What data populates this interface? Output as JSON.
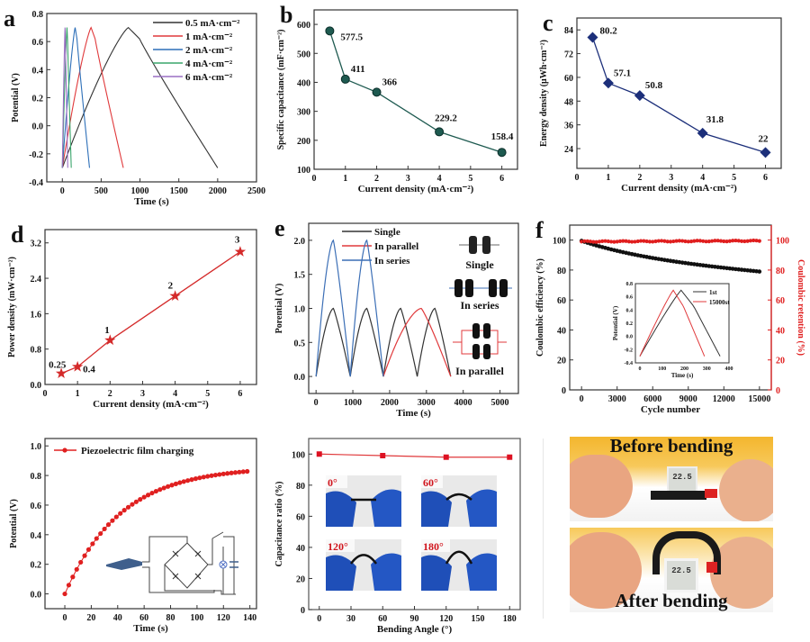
{
  "figure": {
    "panel_labels": [
      "a",
      "b",
      "c",
      "d",
      "e",
      "f"
    ]
  },
  "chart_data": [
    {
      "id": "a",
      "type": "line",
      "title": "",
      "xlabel": "Time (s)",
      "ylabel": "Potential (V)",
      "xlim": [
        -200,
        2500
      ],
      "ylim": [
        -0.4,
        0.8
      ],
      "xticks": [
        0,
        500,
        1000,
        1500,
        2000,
        2500
      ],
      "yticks": [
        -0.4,
        -0.2,
        0.0,
        0.2,
        0.4,
        0.6,
        0.8
      ],
      "legend": "top-right",
      "series": [
        {
          "name": "0.5 mA·cm⁻²",
          "color": "#333333",
          "charge_end": 850,
          "discharge_end": 2000
        },
        {
          "name": "1 mA·cm⁻²",
          "color": "#e0393b",
          "charge_end": 370,
          "discharge_end": 785
        },
        {
          "name": "2 mA·cm⁻²",
          "color": "#2d6fb8",
          "charge_end": 165,
          "discharge_end": 350
        },
        {
          "name": "4 mA·cm⁻²",
          "color": "#3aa56b",
          "charge_end": 60,
          "discharge_end": 115
        },
        {
          "name": "6 mA·cm⁻²",
          "color": "#9a6fc3",
          "charge_end": 35,
          "discharge_end": 70
        }
      ],
      "v_min": -0.3,
      "v_max": 0.7
    },
    {
      "id": "b",
      "type": "line",
      "xlabel": "Current density (mA·cm⁻²)",
      "ylabel": "Specific capacitance (mF·cm⁻²)",
      "xlim": [
        0,
        6.5
      ],
      "ylim": [
        100,
        650
      ],
      "xticks": [
        0,
        1,
        2,
        3,
        4,
        5,
        6
      ],
      "yticks": [
        100,
        200,
        300,
        400,
        500,
        600
      ],
      "color": "#1e5a50",
      "x": [
        0.5,
        1,
        2,
        4,
        6
      ],
      "values": [
        577.5,
        411,
        366,
        229.2,
        158.4
      ],
      "labels": [
        "577.5",
        "411",
        "366",
        "229.2",
        "158.4"
      ]
    },
    {
      "id": "c",
      "type": "line",
      "xlabel": "Current density (mA·cm⁻²)",
      "ylabel": "Energy density (μWh·cm⁻²)",
      "xlim": [
        0,
        6.5
      ],
      "ylim": [
        14,
        90
      ],
      "xticks": [
        0,
        1,
        2,
        3,
        4,
        5,
        6
      ],
      "yticks": [
        24,
        36,
        48,
        60,
        72,
        84
      ],
      "color": "#1c2f7a",
      "x": [
        0.5,
        1,
        2,
        4,
        6
      ],
      "values": [
        80.2,
        57.1,
        50.8,
        31.8,
        22
      ],
      "labels": [
        "80.2",
        "57.1",
        "50.8",
        "31.8",
        "22"
      ]
    },
    {
      "id": "d",
      "type": "line",
      "xlabel": "Current density (mA·cm⁻²)",
      "ylabel": "Power density (mW·cm⁻²)",
      "xlim": [
        0,
        6.5
      ],
      "ylim": [
        0,
        3.5
      ],
      "xticks": [
        0,
        1,
        2,
        3,
        4,
        5,
        6
      ],
      "yticks": [
        0.0,
        0.8,
        1.6,
        2.4,
        3.2
      ],
      "color": "#d42a2a",
      "x": [
        0.5,
        1,
        2,
        4,
        6
      ],
      "values": [
        0.25,
        0.4,
        1,
        2,
        3
      ],
      "labels": [
        "0.25",
        "0.4",
        "1",
        "2",
        "3"
      ]
    },
    {
      "id": "e",
      "type": "line",
      "xlabel": "Time (s)",
      "ylabel": "Porential (V)",
      "xlim": [
        -200,
        5500
      ],
      "ylim": [
        -0.25,
        2.25
      ],
      "xticks": [
        0,
        1000,
        2000,
        3000,
        4000,
        5000
      ],
      "yticks": [
        0.0,
        0.5,
        1.0,
        1.5,
        2.0
      ],
      "legend": "top-center",
      "series": [
        {
          "name": "Single",
          "color": "#333333",
          "cycles": [
            [
              0,
              470,
              930
            ],
            [
              930,
              1380,
              1830
            ],
            [
              1830,
              2300,
              2750
            ],
            [
              2750,
              3230,
              3660
            ]
          ],
          "peak": 1.0
        },
        {
          "name": "In parallel",
          "color": "#e0393b",
          "cycles": [
            [
              1830,
              2860,
              3660
            ]
          ],
          "peak": 1.0
        },
        {
          "name": "In series",
          "color": "#3c6fb6",
          "cycles": [
            [
              0,
              470,
              930
            ],
            [
              930,
              1380,
              1830
            ]
          ],
          "peak": 2.0
        }
      ],
      "insets": [
        "Single",
        "In series",
        "In parallel"
      ]
    },
    {
      "id": "f",
      "type": "scatter",
      "xlabel": "Cycle number",
      "ylabel": "Coulombic efficiency (%)",
      "ylabel_right": "Coulombic retention (%)",
      "xlim": [
        -1000,
        16000
      ],
      "ylim": [
        0,
        110
      ],
      "xticks": [
        0,
        3000,
        6000,
        9000,
        12000,
        15000
      ],
      "yticks": [
        0,
        20,
        40,
        60,
        80,
        100
      ],
      "series": [
        {
          "name": "Coulombic efficiency",
          "axis": "left",
          "color": "#111111",
          "start": 99.5,
          "end": 79
        },
        {
          "name": "Coulombic retention",
          "axis": "right",
          "color": "#e01e1e",
          "start": 99,
          "end": 99.5
        }
      ],
      "inset": {
        "xlabel": "Time (s)",
        "ylabel": "Potential (V)",
        "xlim": [
          -20,
          400
        ],
        "ylim": [
          -0.4,
          0.8
        ],
        "xticks": [
          0,
          100,
          200,
          300,
          400
        ],
        "yticks": [
          -0.4,
          -0.2,
          0.0,
          0.2,
          0.4,
          0.6,
          0.8
        ],
        "series": [
          {
            "name": "1st",
            "color": "#333333",
            "charge_end": 185,
            "discharge_end": 360
          },
          {
            "name": "15000st",
            "color": "#e0393b",
            "charge_end": 150,
            "discharge_end": 290
          }
        ]
      }
    },
    {
      "id": "g",
      "type": "line",
      "xlabel": "Time (s)",
      "ylabel": "Potential (V)",
      "xlim": [
        -15,
        145
      ],
      "ylim": [
        -0.1,
        1.05
      ],
      "xticks": [
        0,
        20,
        40,
        60,
        80,
        100,
        120,
        140
      ],
      "yticks": [
        0.0,
        0.2,
        0.4,
        0.6,
        0.8,
        1.0
      ],
      "legend": "top-left",
      "series": [
        {
          "name": "Piezoelectric film charging",
          "color": "#e02020",
          "v_max": 0.86,
          "tau": 42,
          "t_end": 138,
          "step": 3
        }
      ]
    },
    {
      "id": "h",
      "type": "line",
      "xlabel": "Bending Angle (°)",
      "ylabel": "Capacitance ratio (%)",
      "xlim": [
        -10,
        190
      ],
      "ylim": [
        0,
        110
      ],
      "xticks": [
        0,
        30,
        60,
        90,
        120,
        150,
        180
      ],
      "yticks": [
        0,
        20,
        40,
        60,
        80,
        100
      ],
      "color": "#e0393b",
      "x": [
        0,
        60,
        120,
        180
      ],
      "values": [
        100,
        99,
        98,
        98
      ],
      "photo_labels": [
        "0°",
        "60°",
        "120°",
        "180°"
      ]
    }
  ],
  "photos": {
    "before_label": "Before bending",
    "after_label": "After bending",
    "display_reading": "22.5"
  }
}
